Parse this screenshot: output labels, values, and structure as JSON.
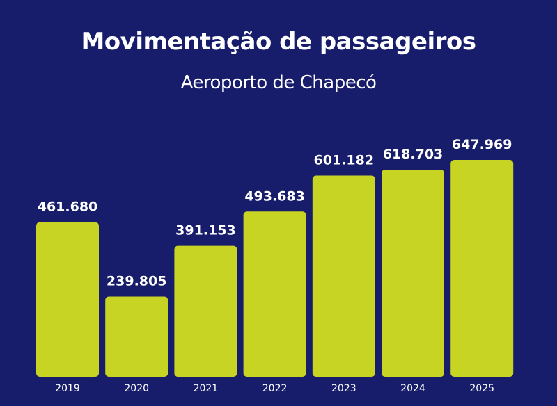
{
  "chart_data": {
    "type": "bar",
    "title": "Movimentação de passageiros",
    "subtitle": "Aeroporto de Chapecó",
    "xlabel": "",
    "ylabel": "",
    "categories": [
      "2019",
      "2020",
      "2021",
      "2022",
      "2023",
      "2024",
      "2025"
    ],
    "values": [
      461680,
      239805,
      391153,
      493683,
      601182,
      618703,
      647969
    ],
    "data_labels": [
      "461.680",
      "239.805",
      "391.153",
      "493.683",
      "601.182",
      "618.703",
      "647.969"
    ],
    "ylim": [
      0,
      650000
    ],
    "grid": false,
    "legend": "none",
    "colors": {
      "background": "#171c6b",
      "bar": "#c8d424",
      "text": "#ffffff"
    }
  }
}
